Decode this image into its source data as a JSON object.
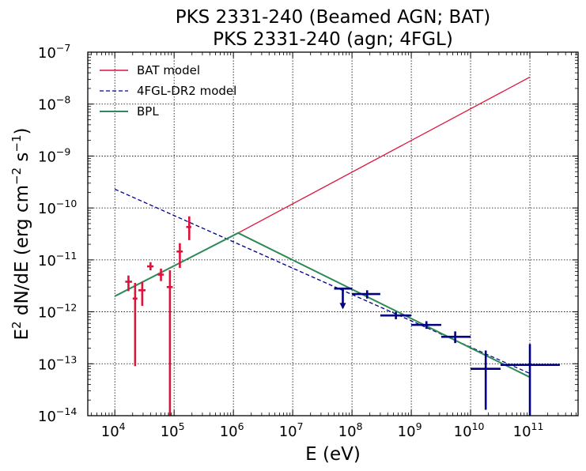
{
  "chart_data": {
    "type": "line",
    "title": "PKS 2331-240 (Beamed AGN; BAT)",
    "subtitle": "PKS 2331-240 (agn; 4FGL)",
    "xlabel": "E (eV)",
    "ylabel": "E2 dN/dE (erg cm−2 s−1)",
    "xscale": "log",
    "yscale": "log",
    "xlim": [
      3500,
      650000000000.0
    ],
    "ylim": [
      1e-14,
      1e-07
    ],
    "grid": true,
    "legend_position": "top-left",
    "x_ticks": [
      {
        "base": "10",
        "exp": "4"
      },
      {
        "base": "10",
        "exp": "5"
      },
      {
        "base": "10",
        "exp": "6"
      },
      {
        "base": "10",
        "exp": "7"
      },
      {
        "base": "10",
        "exp": "8"
      },
      {
        "base": "10",
        "exp": "9"
      },
      {
        "base": "10",
        "exp": "10"
      },
      {
        "base": "10",
        "exp": "11"
      }
    ],
    "y_ticks": [
      {
        "base": "10",
        "exp": "−14"
      },
      {
        "base": "10",
        "exp": "−13"
      },
      {
        "base": "10",
        "exp": "−12"
      },
      {
        "base": "10",
        "exp": "−11"
      },
      {
        "base": "10",
        "exp": "−10"
      },
      {
        "base": "10",
        "exp": "−9"
      },
      {
        "base": "10",
        "exp": "−8"
      },
      {
        "base": "10",
        "exp": "−7"
      }
    ],
    "series": [
      {
        "name": "BAT model",
        "style": "solid",
        "color": "#dc143c",
        "x": [
          1200000.0,
          100000000000.0
        ],
        "y": [
          3.3e-11,
          3.3e-08
        ]
      },
      {
        "name": "4FGL-DR2 model",
        "style": "dashed",
        "color": "#00008b",
        "x": [
          10000.0,
          100000000000.0
        ],
        "y": [
          2.3e-10,
          6.5e-14
        ]
      },
      {
        "name": "BPL",
        "style": "solid",
        "color": "#2e8b57",
        "x": [
          10000.0,
          1200000.0,
          100000000000.0
        ],
        "y": [
          2e-12,
          3.3e-11,
          5.5e-14
        ]
      }
    ],
    "bat_points": {
      "color": "#dc143c",
      "points": [
        {
          "x": 17000,
          "y": 3.8e-12,
          "ylo": 2.5e-12,
          "yhi": 5e-12,
          "xlo": 15000,
          "xhi": 19500
        },
        {
          "x": 22000,
          "y": 1.8e-12,
          "ylo": 9e-14,
          "yhi": 3.6e-12,
          "xlo": 20000,
          "xhi": 24000
        },
        {
          "x": 29000,
          "y": 2.6e-12,
          "ylo": 1.3e-12,
          "yhi": 3.8e-12,
          "xlo": 25000,
          "xhi": 33000
        },
        {
          "x": 40000,
          "y": 7.5e-12,
          "ylo": 6.3e-12,
          "yhi": 9e-12,
          "xlo": 35000,
          "xhi": 45000
        },
        {
          "x": 60000,
          "y": 5.2e-12,
          "ylo": 3.9e-12,
          "yhi": 6.8e-12,
          "xlo": 53000,
          "xhi": 67000
        },
        {
          "x": 85000,
          "y": 3e-12,
          "ylo": 1e-14,
          "yhi": 6.3e-12,
          "xlo": 75000,
          "xhi": 95000
        },
        {
          "x": 125000,
          "y": 1.45e-11,
          "ylo": 7e-12,
          "yhi": 2.1e-11,
          "xlo": 110000,
          "xhi": 140000
        },
        {
          "x": 180000,
          "y": 4.3e-11,
          "ylo": 2.4e-11,
          "yhi": 6.9e-11,
          "xlo": 160000,
          "xhi": 195000
        }
      ]
    },
    "fermi_points": {
      "color": "#000080",
      "points": [
        {
          "x": 70000000.0,
          "y": 2.8e-12,
          "xlo": 50000000.0,
          "xhi": 100000000.0,
          "upper_limit": true,
          "arrow_to": 1.2e-12
        },
        {
          "x": 180000000.0,
          "y": 2.2e-12,
          "ylo": 1.8e-12,
          "yhi": 2.6e-12,
          "xlo": 100000000.0,
          "xhi": 300000000.0
        },
        {
          "x": 550000000.0,
          "y": 8.5e-13,
          "ylo": 7.2e-13,
          "yhi": 1e-12,
          "xlo": 300000000.0,
          "xhi": 1000000000.0
        },
        {
          "x": 1800000000.0,
          "y": 5.6e-13,
          "ylo": 4.7e-13,
          "yhi": 6.6e-13,
          "xlo": 1000000000.0,
          "xhi": 3200000000.0
        },
        {
          "x": 5500000000.0,
          "y": 3.3e-13,
          "ylo": 2.5e-13,
          "yhi": 4.2e-13,
          "xlo": 3200000000.0,
          "xhi": 10000000000.0
        },
        {
          "x": 18000000000.0,
          "y": 8e-14,
          "ylo": 1.3e-14,
          "yhi": 1.8e-13,
          "xlo": 10000000000.0,
          "xhi": 32000000000.0
        },
        {
          "x": 100000000000.0,
          "y": 9.5e-14,
          "ylo": 1e-14,
          "yhi": 2.4e-13,
          "xlo": 32000000000.0,
          "xhi": 320000000000.0
        }
      ]
    }
  }
}
